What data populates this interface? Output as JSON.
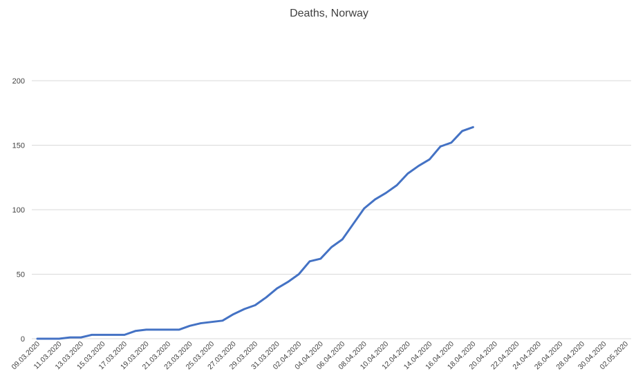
{
  "chart_data": {
    "type": "line",
    "title": "Deaths, Norway",
    "xlabel": "",
    "ylabel": "",
    "ylim": [
      0,
      200
    ],
    "yticks": [
      0,
      50,
      100,
      150,
      200
    ],
    "grid": true,
    "legend": "none",
    "x_tick_labels": [
      "09.03.2020",
      "11.03.2020",
      "13.03.2020",
      "15.03.2020",
      "17.03.2020",
      "19.03.2020",
      "21.03.2020",
      "23.03.2020",
      "25.03.2020",
      "27.03.2020",
      "29.03.2020",
      "31.03.2020",
      "02.04.2020",
      "04.04.2020",
      "06.04.2020",
      "08.04.2020",
      "10.04.2020",
      "12.04.2020",
      "14.04.2020",
      "16.04.2020",
      "18.04.2020",
      "20.04.2020",
      "22.04.2020",
      "24.04.2020",
      "26.04.2020",
      "28.04.2020",
      "30.04.2020",
      "02.05.2020"
    ],
    "x_dates": [
      "09.03.2020",
      "10.03.2020",
      "11.03.2020",
      "12.03.2020",
      "13.03.2020",
      "14.03.2020",
      "15.03.2020",
      "16.03.2020",
      "17.03.2020",
      "18.03.2020",
      "19.03.2020",
      "20.03.2020",
      "21.03.2020",
      "22.03.2020",
      "23.03.2020",
      "24.03.2020",
      "25.03.2020",
      "26.03.2020",
      "27.03.2020",
      "28.03.2020",
      "29.03.2020",
      "30.03.2020",
      "31.03.2020",
      "01.04.2020",
      "02.04.2020",
      "03.04.2020",
      "04.04.2020",
      "05.04.2020",
      "06.04.2020",
      "07.04.2020",
      "08.04.2020",
      "09.04.2020",
      "10.04.2020",
      "11.04.2020",
      "12.04.2020",
      "13.04.2020",
      "14.04.2020",
      "15.04.2020",
      "16.04.2020",
      "17.04.2020",
      "18.04.2020",
      "19.04.2020",
      "20.04.2020",
      "21.04.2020",
      "22.04.2020",
      "23.04.2020",
      "24.04.2020",
      "25.04.2020",
      "26.04.2020",
      "27.04.2020",
      "28.04.2020",
      "29.04.2020",
      "30.04.2020",
      "01.05.2020",
      "02.05.2020"
    ],
    "series": [
      {
        "color": "#4472c4",
        "values": [
          0,
          0,
          0,
          1,
          1,
          3,
          3,
          3,
          3,
          6,
          7,
          7,
          7,
          7,
          10,
          12,
          13,
          14,
          19,
          23,
          26,
          32,
          39,
          44,
          50,
          60,
          62,
          71,
          77,
          89,
          101,
          108,
          113,
          119,
          128,
          134,
          139,
          149,
          152,
          161,
          164
        ]
      }
    ]
  }
}
